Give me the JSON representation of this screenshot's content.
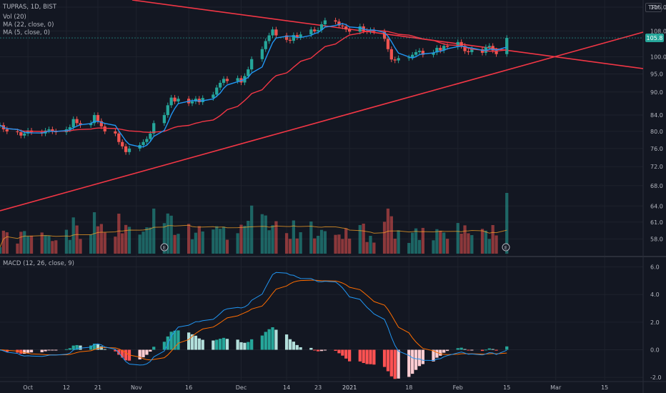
{
  "header": {
    "symbol": "TUPRAS, 1D, BIST",
    "currency": "TRY"
  },
  "legend": {
    "vol": "Vol (20)",
    "ma22": "MA (22, close, 0)",
    "ma5": "MA (5, close, 0)",
    "macd": "MACD (12, 26, close, 9)"
  },
  "colors": {
    "background": "#131722",
    "up": "#26a69a",
    "down": "#ef5350",
    "ma_fast": "#2196f3",
    "ma_slow": "#f23645",
    "trendline": "#f23645",
    "macd_line": "#2196f3",
    "signal_line": "#ff6d00"
  },
  "chart_data": [
    {
      "type": "candlestick",
      "title": "TUPRAS, 1D, BIST",
      "scale": "log",
      "ylim": [
        55.5,
        118.5
      ],
      "y_ticks": [
        "116.0",
        "108.0",
        "100.0",
        "95.0",
        "90.0",
        "84.0",
        "80.0",
        "76.0",
        "72.0",
        "68.0",
        "64.0",
        "61.0",
        "58.0"
      ],
      "y_tick_values": [
        116,
        108,
        100,
        95,
        90,
        84,
        80,
        76,
        72,
        68,
        64,
        61,
        58
      ],
      "x_ticks": [
        "Oct",
        "12",
        "21",
        "Nov",
        "16",
        "Dec",
        "14",
        "23",
        "2021",
        "18",
        "Feb",
        "15",
        "Mar",
        "15"
      ],
      "x_tick_dates": [
        "2020-10-01",
        "2020-10-12",
        "2020-10-21",
        "2020-11-01",
        "2020-11-16",
        "2020-12-01",
        "2020-12-14",
        "2020-12-23",
        "2021-01-01",
        "2021-01-18",
        "2021-02-01",
        "2021-02-15",
        "2021-03-01",
        "2021-03-15"
      ],
      "date_range": [
        "2020-09-23",
        "2021-03-26"
      ],
      "last_price": "105.8",
      "closes": [
        81.5,
        80.5,
        80,
        79.8,
        79,
        79.5,
        80.2,
        79.8,
        79.5,
        80.2,
        80.5,
        80,
        79.8,
        80.5,
        81,
        83,
        82,
        81.5,
        82,
        84,
        82.5,
        81.2,
        80,
        79.5,
        77.5,
        76.5,
        75.2,
        76,
        76.8,
        77.5,
        78.2,
        79.5,
        82,
        84,
        86.5,
        88.5,
        87.5,
        88.2,
        87,
        87.5,
        88.2,
        87.3,
        88.4,
        89.3,
        91.2,
        92.5,
        93.6,
        93,
        93.8,
        92.6,
        94.4,
        96.3,
        99.3,
        102.3,
        104.8,
        106.6,
        108.5,
        106.6,
        105.2,
        104.9,
        106.7,
        106,
        106.9,
        108.5,
        107.9,
        108.3,
        110.2,
        111.5,
        111.1,
        109.8,
        109.5,
        108.5,
        107.8,
        109.5,
        108.1,
        107.9,
        108.3,
        107.8,
        105.5,
        102.3,
        99.2,
        98.9,
        99.6,
        99.8,
        100.6,
        101.4,
        101.8,
        100.6,
        101.3,
        102.7,
        101.9,
        103.3,
        103,
        104.5,
        103.3,
        101.7,
        101.4,
        102.3,
        101.2,
        102.9,
        103.3,
        101.9,
        100.8,
        105.8
      ],
      "volume_note": "volume histogram with Vol (20) moving average; earnings markers 'E'",
      "earnings_markers": [
        "E",
        "E"
      ]
    },
    {
      "type": "line",
      "title": "MACD (12, 26, close, 9)",
      "ylim": [
        -2.2,
        6.6
      ],
      "y_ticks": [
        "6.0",
        "4.0",
        "2.0",
        "0.0",
        "-2.0"
      ],
      "y_tick_values": [
        6,
        4,
        2,
        0,
        -2
      ],
      "series_names": [
        "macd",
        "signal",
        "histogram"
      ]
    }
  ]
}
